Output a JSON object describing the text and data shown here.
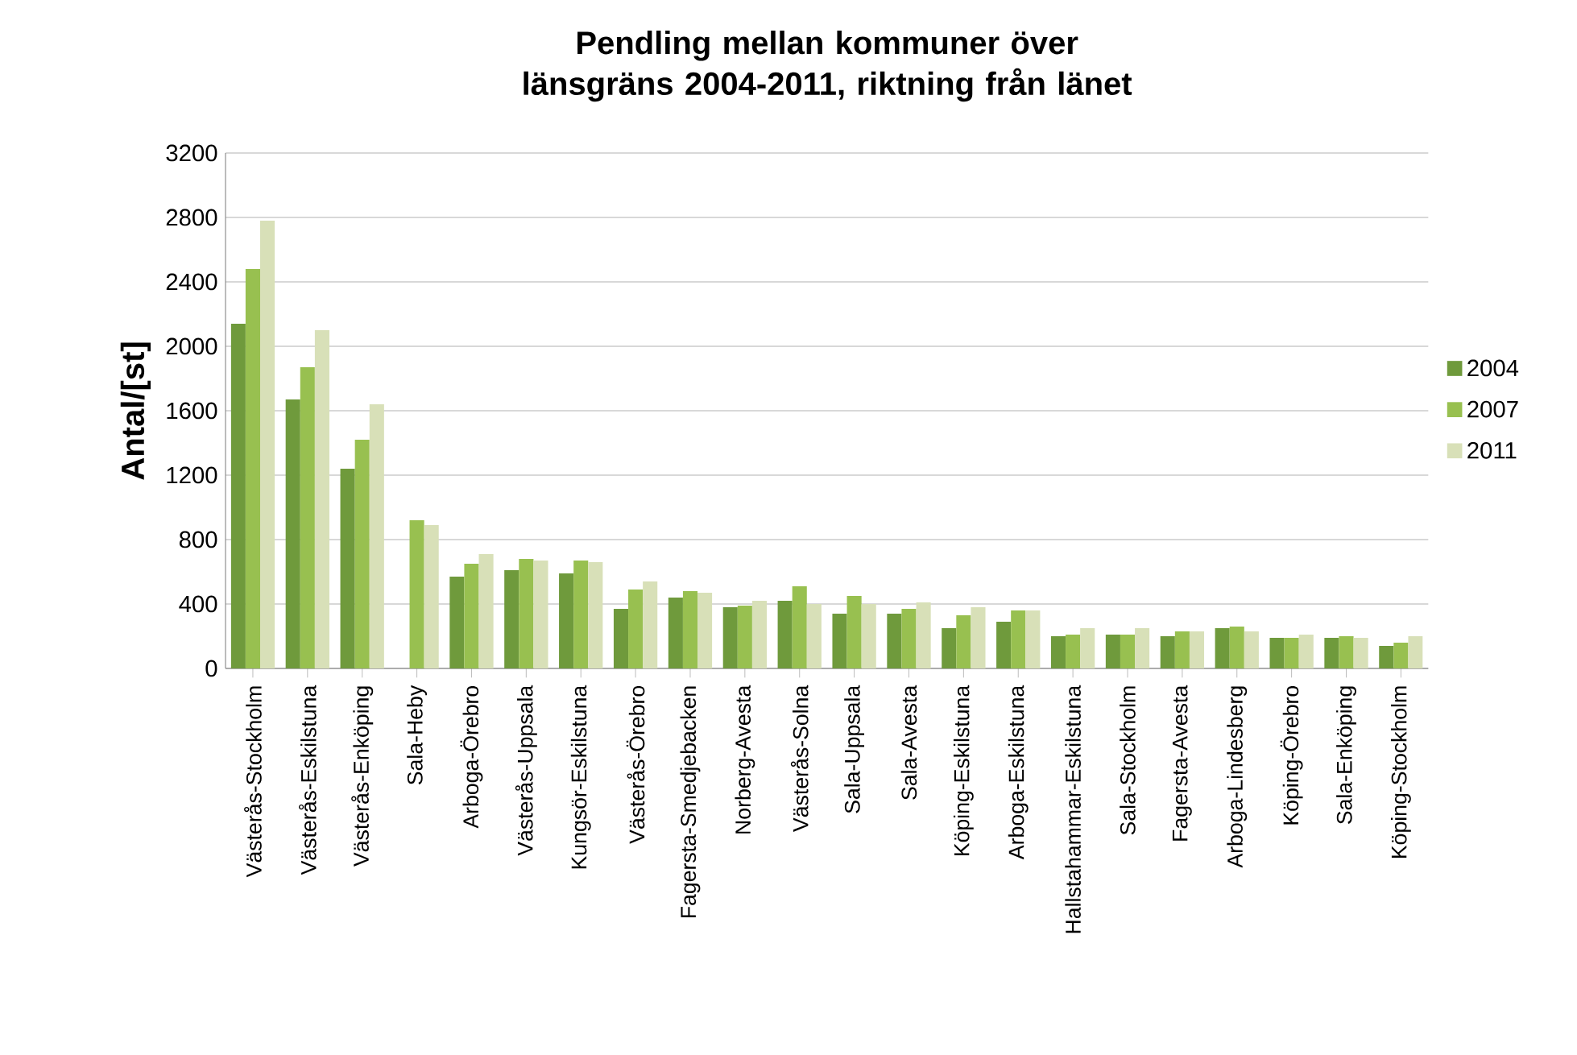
{
  "chart_data": {
    "type": "bar",
    "title": "Pendling mellan kommuner över länsgräns 2004-2011, riktning från länet",
    "ylabel": "Antal/[st]",
    "categories": [
      "Västerås-Stockholm",
      "Västerås-Eskilstuna",
      "Västerås-Enköping",
      "Sala-Heby",
      "Arboga-Örebro",
      "Västerås-Uppsala",
      "Kungsör-Eskilstuna",
      "Västerås-Örebro",
      "Fagersta-Smedjebacken",
      "Norberg-Avesta",
      "Västerås-Solna",
      "Sala-Uppsala",
      "Sala-Avesta",
      "Köping-Eskilstuna",
      "Arboga-Eskilstuna",
      "Hallstahammar-Eskilstuna",
      "Sala-Stockholm",
      "Fagersta-Avesta",
      "Arboga-Lindesberg",
      "Köping-Örebro",
      "Sala-Enköping",
      "Köping-Stockholm"
    ],
    "series": [
      {
        "name": "2004",
        "color": "#6f9a3c",
        "values": [
          2140,
          1670,
          1240,
          null,
          570,
          610,
          590,
          370,
          440,
          380,
          420,
          340,
          340,
          250,
          290,
          200,
          210,
          200,
          250,
          190,
          190,
          140
        ]
      },
      {
        "name": "2007",
        "color": "#98c050",
        "values": [
          2480,
          1870,
          1420,
          920,
          650,
          680,
          670,
          490,
          480,
          390,
          510,
          450,
          370,
          330,
          360,
          210,
          210,
          230,
          260,
          190,
          200,
          160
        ]
      },
      {
        "name": "2011",
        "color": "#d8e0b8",
        "values": [
          2780,
          2100,
          1640,
          890,
          710,
          670,
          660,
          540,
          470,
          420,
          400,
          400,
          410,
          380,
          360,
          250,
          250,
          230,
          230,
          210,
          190,
          200
        ]
      }
    ],
    "ylim": [
      0,
      3200
    ],
    "yticks": [
      0,
      400,
      800,
      1200,
      1600,
      2000,
      2400,
      2800,
      3200
    ],
    "grid": "y",
    "legend": "right"
  }
}
